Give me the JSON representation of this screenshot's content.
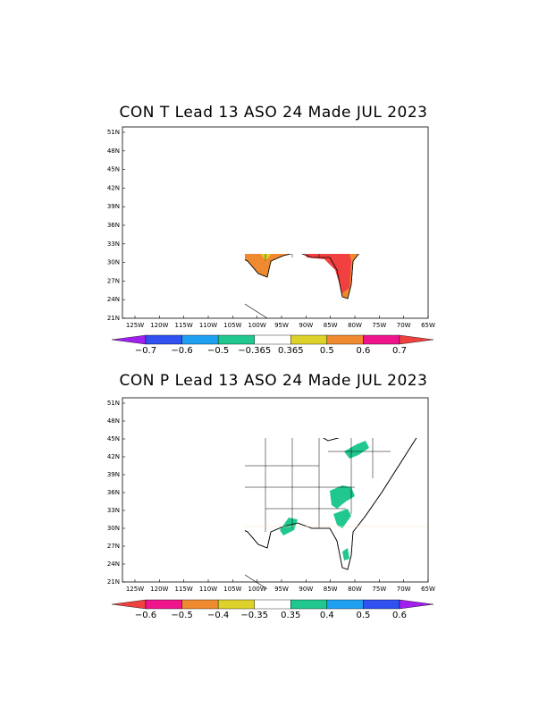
{
  "maps": [
    {
      "id": "temperature",
      "title": "CON T Lead 13 ASO 24 Made JUL 2023",
      "lat_labels": [
        "51N",
        "48N",
        "45N",
        "42N",
        "39N",
        "36N",
        "33N",
        "30N",
        "27N",
        "24N",
        "21N"
      ],
      "lon_labels": [
        "125W",
        "120W",
        "115W",
        "110W",
        "105W",
        "100W",
        "95W",
        "90W",
        "85W",
        "80W",
        "75W",
        "70W",
        "65W"
      ],
      "colorbar": {
        "labels": [
          "−0.7",
          "−0.6",
          "−0.5",
          "−0.365",
          "0.365",
          "0.5",
          "0.6",
          "0.7"
        ],
        "colors": [
          "#a020f0",
          "#3050f0",
          "#1ea0f0",
          "#20c890",
          "#ffffff",
          "#dcd22a",
          "#f08a30",
          "#f0148c",
          "#f04040"
        ]
      },
      "categories": {
        "0.365": "#dcd22a",
        "0.5": "#f08a30",
        "0.6": "#f0148c",
        "0.7": "#f04040"
      }
    },
    {
      "id": "precipitation",
      "title": "CON P  Lead 13 ASO 24 Made JUL 2023",
      "lat_labels": [
        "51N",
        "48N",
        "45N",
        "42N",
        "39N",
        "36N",
        "33N",
        "30N",
        "27N",
        "24N",
        "21N"
      ],
      "lon_labels": [
        "125W",
        "120W",
        "115W",
        "110W",
        "105W",
        "100W",
        "95W",
        "90W",
        "85W",
        "80W",
        "75W",
        "70W",
        "65W"
      ],
      "colorbar": {
        "labels": [
          "−0.6",
          "−0.5",
          "−0.4",
          "−0.35",
          "0.35",
          "0.4",
          "0.5",
          "0.6"
        ],
        "colors": [
          "#f04040",
          "#f0148c",
          "#f08a30",
          "#dcd22a",
          "#ffffff",
          "#20c890",
          "#1ea0f0",
          "#3050f0",
          "#a020f0"
        ]
      },
      "categories": {
        "-0.35": "#dcd22a",
        "0.35": "#20c890"
      }
    }
  ]
}
